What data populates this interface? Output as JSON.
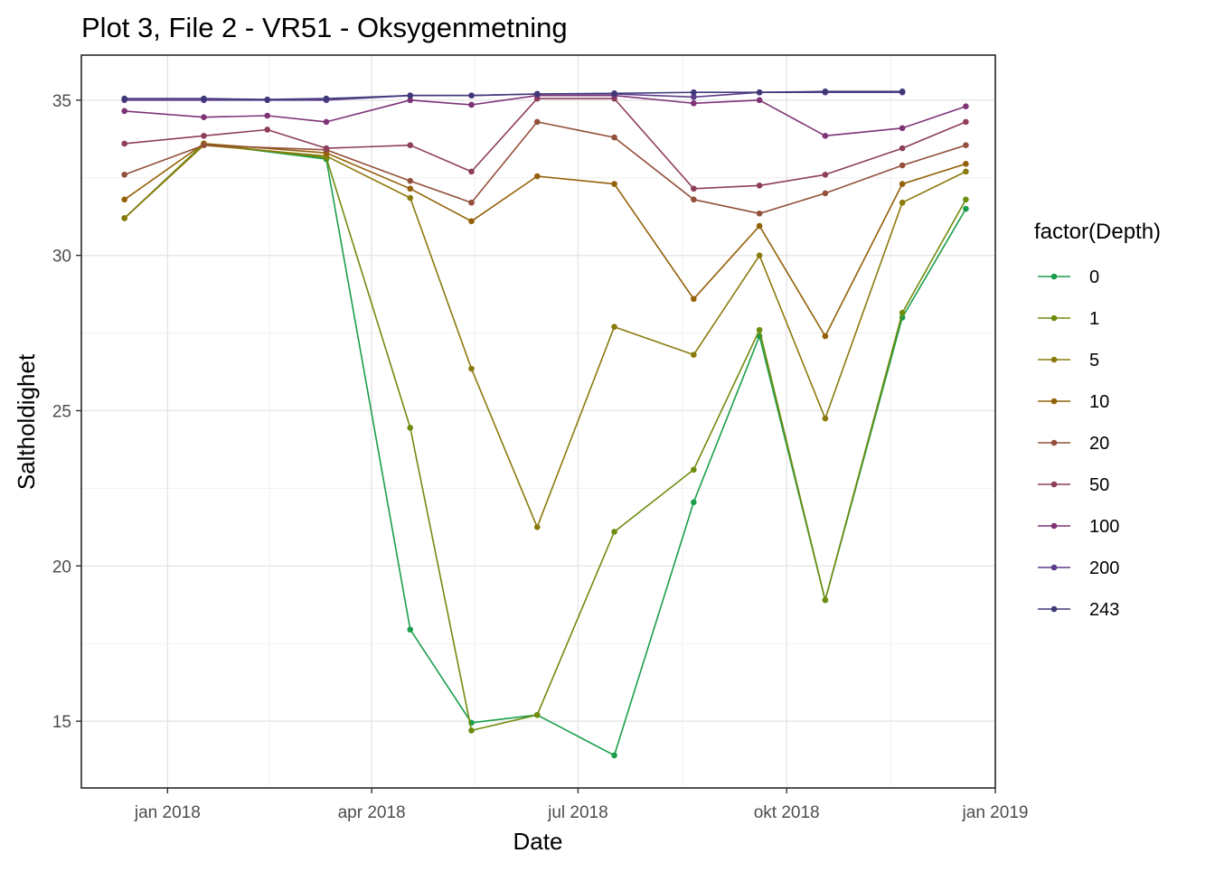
{
  "chart_data": {
    "type": "line",
    "title": "Plot 3, File 2 - VR51  -  Oksygenmetning",
    "xlabel": "Date",
    "ylabel": "Saltholdighet",
    "legend_title": "factor(Depth)",
    "legend_position": "right",
    "grid": true,
    "x_type": "date",
    "xlim": [
      "2017-11-24",
      "2019-01-01"
    ],
    "ylim": [
      12.85,
      36.45
    ],
    "x_ticks": [
      {
        "date": "2018-01-01",
        "label": "jan 2018"
      },
      {
        "date": "2018-04-01",
        "label": "apr 2018"
      },
      {
        "date": "2018-07-01",
        "label": "jul 2018"
      },
      {
        "date": "2018-10-01",
        "label": "okt 2018"
      },
      {
        "date": "2019-01-01",
        "label": "jan 2019"
      }
    ],
    "y_ticks": [
      15,
      20,
      25,
      30,
      35
    ],
    "series": [
      {
        "name": "0",
        "color": "#1a9e4a",
        "x": [
          "2017-12-13",
          "2018-01-17",
          "2018-03-12",
          "2018-04-18",
          "2018-05-15",
          "2018-06-13",
          "2018-07-17",
          "2018-08-21",
          "2018-09-19",
          "2018-10-18",
          "2018-11-21",
          "2018-12-19"
        ],
        "y": [
          31.2,
          33.6,
          33.1,
          17.95,
          14.95,
          15.2,
          13.9,
          22.05,
          27.4,
          18.9,
          28.0,
          31.5
        ]
      },
      {
        "name": "1",
        "color": "#6e8c0e",
        "x": [
          "2017-12-13",
          "2018-01-17",
          "2018-03-12",
          "2018-04-18",
          "2018-05-15",
          "2018-06-13",
          "2018-07-17",
          "2018-08-21",
          "2018-09-19",
          "2018-10-18",
          "2018-11-21",
          "2018-12-19"
        ],
        "y": [
          31.2,
          33.6,
          33.15,
          24.45,
          14.7,
          15.2,
          21.1,
          23.1,
          27.6,
          18.9,
          28.15,
          31.8
        ]
      },
      {
        "name": "5",
        "color": "#8a7a0c",
        "x": [
          "2017-12-13",
          "2018-01-17",
          "2018-03-12",
          "2018-04-18",
          "2018-05-15",
          "2018-06-13",
          "2018-07-17",
          "2018-08-21",
          "2018-09-19",
          "2018-10-18",
          "2018-11-21",
          "2018-12-19"
        ],
        "y": [
          31.2,
          33.55,
          33.2,
          31.85,
          26.35,
          21.25,
          27.7,
          26.8,
          30.0,
          24.75,
          31.7,
          32.7
        ]
      },
      {
        "name": "10",
        "color": "#946008",
        "x": [
          "2017-12-13",
          "2018-01-17",
          "2018-03-12",
          "2018-04-18",
          "2018-05-15",
          "2018-06-13",
          "2018-07-17",
          "2018-08-21",
          "2018-09-19",
          "2018-10-18",
          "2018-11-21",
          "2018-12-19"
        ],
        "y": [
          31.8,
          33.6,
          33.3,
          32.15,
          31.1,
          32.55,
          32.3,
          28.6,
          30.95,
          27.4,
          32.3,
          32.95
        ]
      },
      {
        "name": "20",
        "color": "#93503a",
        "x": [
          "2017-12-13",
          "2018-01-17",
          "2018-03-12",
          "2018-04-18",
          "2018-05-15",
          "2018-06-13",
          "2018-07-17",
          "2018-08-21",
          "2018-09-19",
          "2018-10-18",
          "2018-11-21",
          "2018-12-19"
        ],
        "y": [
          32.6,
          33.55,
          33.4,
          32.4,
          31.7,
          34.3,
          33.8,
          31.8,
          31.35,
          32.0,
          32.9,
          33.55
        ]
      },
      {
        "name": "50",
        "color": "#8e3e58",
        "x": [
          "2017-12-13",
          "2018-01-17",
          "2018-02-14",
          "2018-03-12",
          "2018-04-18",
          "2018-05-15",
          "2018-06-13",
          "2018-07-17",
          "2018-08-21",
          "2018-09-19",
          "2018-10-18",
          "2018-11-21",
          "2018-12-19"
        ],
        "y": [
          33.6,
          33.85,
          34.05,
          33.45,
          33.55,
          32.7,
          35.05,
          35.05,
          32.15,
          32.25,
          32.6,
          33.45,
          34.3
        ]
      },
      {
        "name": "100",
        "color": "#7e3376",
        "x": [
          "2017-12-13",
          "2018-01-17",
          "2018-02-14",
          "2018-03-12",
          "2018-04-18",
          "2018-05-15",
          "2018-06-13",
          "2018-07-17",
          "2018-08-21",
          "2018-09-19",
          "2018-10-18",
          "2018-11-21",
          "2018-12-19"
        ],
        "y": [
          34.65,
          34.45,
          34.5,
          34.3,
          35.0,
          34.85,
          35.15,
          35.15,
          34.9,
          35.0,
          33.85,
          34.1,
          34.8
        ]
      },
      {
        "name": "200",
        "color": "#5c3c8a",
        "x": [
          "2017-12-13",
          "2018-01-17",
          "2018-02-14",
          "2018-03-12",
          "2018-04-18",
          "2018-05-15",
          "2018-06-13",
          "2018-07-17",
          "2018-08-21",
          "2018-09-19",
          "2018-10-18",
          "2018-11-21"
        ],
        "y": [
          35.0,
          35.0,
          35.0,
          35.0,
          35.15,
          35.15,
          35.2,
          35.2,
          35.1,
          35.25,
          35.25,
          35.25
        ]
      },
      {
        "name": "243",
        "color": "#3e3a7a",
        "x": [
          "2017-12-13",
          "2018-01-17",
          "2018-02-14",
          "2018-03-12",
          "2018-04-18",
          "2018-05-15",
          "2018-06-13",
          "2018-07-17",
          "2018-08-21",
          "2018-09-19",
          "2018-10-18",
          "2018-11-21"
        ],
        "y": [
          35.05,
          35.05,
          35.02,
          35.05,
          35.15,
          35.15,
          35.2,
          35.22,
          35.25,
          35.25,
          35.28,
          35.28
        ]
      }
    ]
  }
}
